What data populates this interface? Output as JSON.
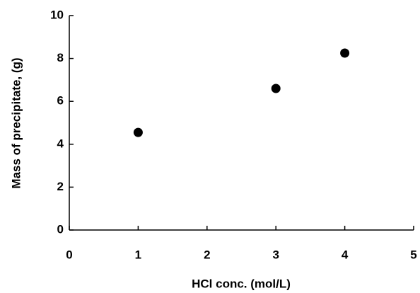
{
  "chart_data": {
    "type": "scatter",
    "x_label": "HCl conc. (mol/L)",
    "y_label": "Mass of precipitate,  (g)",
    "series": [
      {
        "x": [
          1,
          3,
          4
        ],
        "values": [
          4.55,
          6.6,
          8.25
        ],
        "color": "#000000"
      }
    ],
    "xlim": [
      0,
      5
    ],
    "xticks": [
      0,
      1,
      2,
      3,
      4,
      5
    ],
    "ylim": [
      0,
      10
    ],
    "yticks": [
      0,
      2,
      4,
      6,
      8,
      10
    ],
    "grid": false
  }
}
